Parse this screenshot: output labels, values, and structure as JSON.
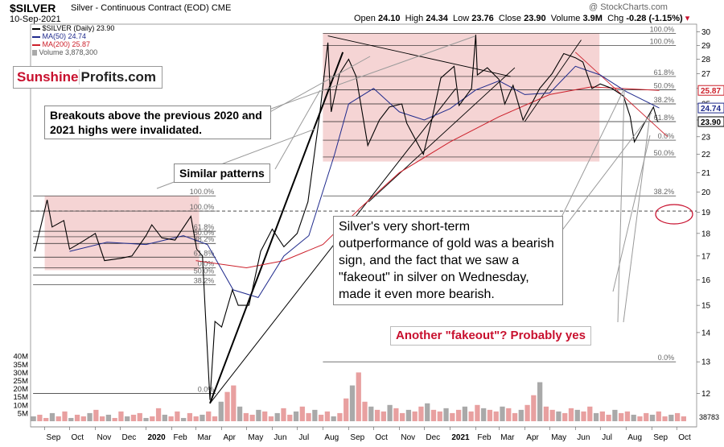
{
  "header": {
    "symbol": "$SILVER",
    "name": "Silver - Continuous Contract (EOD)",
    "exchange": "CME",
    "date": "10-Sep-2021",
    "open_label": "Open",
    "open": "24.10",
    "high_label": "High",
    "high": "24.34",
    "low_label": "Low",
    "low": "23.76",
    "close_label": "Close",
    "close": "23.90",
    "volume_label": "Volume",
    "volume": "3.9M",
    "chg_label": "Chg",
    "chg": "-0.28 (-1.15%)",
    "credit": "@ StockCharts.com"
  },
  "legend": {
    "price": "$SILVER (Daily) 23.90",
    "ma50": "MA(50) 24.74",
    "ma200": "MA(200) 25.87",
    "volume": "Volume 3,878,300"
  },
  "logo": {
    "part1": "Sunshine",
    "part2": "Profits.com"
  },
  "notes": {
    "breakouts": "Breakouts above the previous 2020 and 2021 highs were invalidated.",
    "similar": "Similar patterns",
    "fakeout": "Silver's very short-term outperformance of gold was a bearish sign, and the fact that we saw a \"fakeout\" in silver on Wednesday, made it even more bearish.",
    "another": "Another \"fakeout\"? Probably yes"
  },
  "colors": {
    "price": "#000000",
    "ma50": "#1f2a8c",
    "ma200": "#cc1f2a",
    "zone": "#f2c5c5",
    "volume_up": "#e8a0a0",
    "volume_down": "#a9a9a9",
    "accent": "#c8102e"
  },
  "chart_data": {
    "type": "line",
    "y_axis": {
      "scale": "log",
      "range": [
        11.6,
        30.6
      ],
      "ticks": [
        12,
        13,
        14,
        15,
        16,
        17,
        18,
        19,
        20,
        21,
        22,
        23,
        24,
        25,
        26,
        27,
        28,
        29,
        30
      ]
    },
    "y_badges": [
      {
        "label": "25.87",
        "value": 25.87,
        "series": "ma200"
      },
      {
        "label": "24.74",
        "value": 24.74,
        "series": "ma50"
      },
      {
        "label": "23.90",
        "value": 23.9,
        "series": "price"
      }
    ],
    "volume_axis": {
      "range": [
        0,
        52
      ],
      "ticks": [
        "5M",
        "10M",
        "15M",
        "20M",
        "25M",
        "30M",
        "35M",
        "40M"
      ],
      "last_label": "38783"
    },
    "x_axis": {
      "range": [
        "2019-08-15",
        "2021-10-25"
      ],
      "ticks": [
        {
          "date": "2019-09-01",
          "label": "Sep"
        },
        {
          "date": "2019-10-01",
          "label": "Oct"
        },
        {
          "date": "2019-11-01",
          "label": "Nov"
        },
        {
          "date": "2019-12-01",
          "label": "Dec"
        },
        {
          "date": "2020-01-01",
          "label": "2020"
        },
        {
          "date": "2020-02-01",
          "label": "Feb"
        },
        {
          "date": "2020-03-01",
          "label": "Mar"
        },
        {
          "date": "2020-04-01",
          "label": "Apr"
        },
        {
          "date": "2020-05-01",
          "label": "May"
        },
        {
          "date": "2020-06-01",
          "label": "Jun"
        },
        {
          "date": "2020-07-01",
          "label": "Jul"
        },
        {
          "date": "2020-08-01",
          "label": "Aug"
        },
        {
          "date": "2020-09-01",
          "label": "Sep"
        },
        {
          "date": "2020-10-01",
          "label": "Oct"
        },
        {
          "date": "2020-11-01",
          "label": "Nov"
        },
        {
          "date": "2020-12-01",
          "label": "Dec"
        },
        {
          "date": "2021-01-01",
          "label": "2021"
        },
        {
          "date": "2021-02-01",
          "label": "Feb"
        },
        {
          "date": "2021-03-01",
          "label": "Mar"
        },
        {
          "date": "2021-04-01",
          "label": "Apr"
        },
        {
          "date": "2021-05-01",
          "label": "May"
        },
        {
          "date": "2021-06-01",
          "label": "Jun"
        },
        {
          "date": "2021-07-01",
          "label": "Jul"
        },
        {
          "date": "2021-08-01",
          "label": "Aug"
        },
        {
          "date": "2021-09-01",
          "label": "Sep"
        },
        {
          "date": "2021-10-01",
          "label": "Oct"
        }
      ]
    },
    "series": [
      {
        "key": "price",
        "name": "$SILVER (Daily) 23.90",
        "points": [
          [
            "2019-08-20",
            17.2
          ],
          [
            "2019-09-04",
            19.6
          ],
          [
            "2019-09-10",
            18.3
          ],
          [
            "2019-09-24",
            18.6
          ],
          [
            "2019-10-01",
            17.3
          ],
          [
            "2019-10-15",
            17.6
          ],
          [
            "2019-11-01",
            18.0
          ],
          [
            "2019-11-12",
            16.8
          ],
          [
            "2019-12-02",
            16.9
          ],
          [
            "2019-12-15",
            17.0
          ],
          [
            "2020-01-01",
            17.9
          ],
          [
            "2020-01-08",
            18.4
          ],
          [
            "2020-01-20",
            17.8
          ],
          [
            "2020-02-05",
            17.7
          ],
          [
            "2020-02-24",
            18.8
          ],
          [
            "2020-03-02",
            17.3
          ],
          [
            "2020-03-09",
            17.0
          ],
          [
            "2020-03-12",
            15.0
          ],
          [
            "2020-03-18",
            11.8
          ],
          [
            "2020-03-24",
            14.4
          ],
          [
            "2020-04-01",
            14.2
          ],
          [
            "2020-04-14",
            15.6
          ],
          [
            "2020-04-21",
            15.0
          ],
          [
            "2020-05-04",
            15.0
          ],
          [
            "2020-05-18",
            17.2
          ],
          [
            "2020-06-01",
            18.2
          ],
          [
            "2020-06-15",
            17.4
          ],
          [
            "2020-07-01",
            18.0
          ],
          [
            "2020-07-14",
            19.5
          ],
          [
            "2020-07-28",
            24.3
          ],
          [
            "2020-08-07",
            29.2
          ],
          [
            "2020-08-11",
            24.5
          ],
          [
            "2020-08-21",
            27.0
          ],
          [
            "2020-09-01",
            28.0
          ],
          [
            "2020-09-10",
            26.8
          ],
          [
            "2020-09-24",
            22.5
          ],
          [
            "2020-10-08",
            24.0
          ],
          [
            "2020-10-20",
            24.8
          ],
          [
            "2020-11-04",
            25.0
          ],
          [
            "2020-11-10",
            23.8
          ],
          [
            "2020-11-30",
            22.0
          ],
          [
            "2020-12-10",
            24.0
          ],
          [
            "2020-12-21",
            26.7
          ],
          [
            "2021-01-06",
            27.5
          ],
          [
            "2021-01-12",
            24.9
          ],
          [
            "2021-01-27",
            26.0
          ],
          [
            "2021-02-01",
            29.8
          ],
          [
            "2021-02-03",
            26.9
          ],
          [
            "2021-02-15",
            27.4
          ],
          [
            "2021-03-01",
            26.6
          ],
          [
            "2021-03-08",
            25.0
          ],
          [
            "2021-03-18",
            26.2
          ],
          [
            "2021-03-30",
            24.0
          ],
          [
            "2021-04-19",
            26.0
          ],
          [
            "2021-05-04",
            27.0
          ],
          [
            "2021-05-18",
            28.4
          ],
          [
            "2021-06-01",
            28.1
          ],
          [
            "2021-06-10",
            27.8
          ],
          [
            "2021-06-21",
            26.0
          ],
          [
            "2021-07-01",
            26.3
          ],
          [
            "2021-07-15",
            26.0
          ],
          [
            "2021-07-29",
            25.5
          ],
          [
            "2021-08-06",
            24.2
          ],
          [
            "2021-08-11",
            22.7
          ],
          [
            "2021-08-24",
            23.9
          ],
          [
            "2021-09-03",
            24.8
          ],
          [
            "2021-09-08",
            23.9
          ],
          [
            "2021-09-10",
            23.9
          ]
        ]
      },
      {
        "key": "ma50",
        "name": "MA(50) 24.74",
        "points": [
          [
            "2019-10-01",
            17.2
          ],
          [
            "2019-11-15",
            17.6
          ],
          [
            "2020-01-01",
            17.5
          ],
          [
            "2020-02-15",
            17.9
          ],
          [
            "2020-03-15",
            17.5
          ],
          [
            "2020-04-15",
            15.6
          ],
          [
            "2020-05-15",
            15.3
          ],
          [
            "2020-06-15",
            17.0
          ],
          [
            "2020-07-15",
            17.9
          ],
          [
            "2020-08-15",
            22.0
          ],
          [
            "2020-09-01",
            25.0
          ],
          [
            "2020-10-01",
            26.0
          ],
          [
            "2020-11-01",
            24.5
          ],
          [
            "2020-12-01",
            24.0
          ],
          [
            "2021-01-01",
            24.7
          ],
          [
            "2021-02-01",
            25.9
          ],
          [
            "2021-03-01",
            26.5
          ],
          [
            "2021-04-01",
            25.6
          ],
          [
            "2021-05-01",
            25.7
          ],
          [
            "2021-06-01",
            27.5
          ],
          [
            "2021-07-01",
            26.9
          ],
          [
            "2021-08-01",
            25.8
          ],
          [
            "2021-09-10",
            24.74
          ]
        ]
      },
      {
        "key": "ma200",
        "name": "MA(200) 25.87",
        "points": [
          [
            "2020-03-01",
            16.8
          ],
          [
            "2020-05-01",
            16.5
          ],
          [
            "2020-06-15",
            16.8
          ],
          [
            "2020-08-01",
            17.5
          ],
          [
            "2020-09-15",
            19.2
          ],
          [
            "2020-11-01",
            21.0
          ],
          [
            "2021-01-01",
            22.7
          ],
          [
            "2021-03-01",
            24.2
          ],
          [
            "2021-05-01",
            25.6
          ],
          [
            "2021-06-20",
            26.1
          ],
          [
            "2021-09-10",
            25.87
          ]
        ]
      }
    ],
    "zones": [
      {
        "from": "2019-09-01",
        "to": "2020-03-05",
        "y0": 16.4,
        "y1": 19.8
      },
      {
        "from": "2020-08-01",
        "to": "2021-06-30",
        "y0": 21.6,
        "y1": 29.9
      }
    ],
    "fib_levels": [
      {
        "label": "100.0%",
        "value": 19.8
      },
      {
        "label": "100.0%",
        "value": 19.05
      },
      {
        "label": "61.8%",
        "value": 18.1
      },
      {
        "label": "50.0%",
        "value": 17.85
      },
      {
        "label": "38.2%",
        "value": 17.55
      },
      {
        "label": "61.8%",
        "value": 16.95
      },
      {
        "label": "0.0%",
        "value": 16.5
      },
      {
        "label": "50.0%",
        "value": 16.2
      },
      {
        "label": "38.2%",
        "value": 15.8
      },
      {
        "label": "0.0%",
        "value": 12.0
      },
      {
        "label": "100.0%",
        "value": 29.9
      },
      {
        "label": "100.0%",
        "value": 29.0
      },
      {
        "label": "61.8%",
        "value": 26.8
      },
      {
        "label": "50.0%",
        "value": 25.9
      },
      {
        "label": "38.2%",
        "value": 25.0
      },
      {
        "label": "61.8%",
        "value": 23.9
      },
      {
        "label": "0.0%",
        "value": 22.8
      },
      {
        "label": "50.0%",
        "value": 21.85
      },
      {
        "label": "38.2%",
        "value": 19.8
      },
      {
        "label": "0.0%",
        "value": 13.0
      }
    ],
    "volume_samples": [
      3,
      4,
      2,
      5,
      3,
      6,
      2,
      4,
      3,
      5,
      7,
      3,
      4,
      2,
      6,
      3,
      4,
      5,
      2,
      3,
      8,
      4,
      3,
      6,
      2,
      5,
      3,
      4,
      6,
      3,
      12,
      18,
      22,
      9,
      5,
      4,
      7,
      6,
      3,
      5,
      8,
      4,
      6,
      9,
      5,
      7,
      4,
      6,
      3,
      5,
      14,
      22,
      30,
      12,
      9,
      7,
      6,
      10,
      8,
      5,
      7,
      6,
      9,
      11,
      7,
      6,
      8,
      5,
      7,
      9,
      6,
      10,
      8,
      7,
      6,
      9,
      8,
      5,
      7,
      10,
      16,
      24,
      9,
      7,
      6,
      5,
      8,
      7,
      6,
      9,
      5,
      6,
      4,
      7,
      5,
      6,
      4,
      3,
      5,
      4,
      6,
      3,
      4,
      5,
      3
    ]
  }
}
